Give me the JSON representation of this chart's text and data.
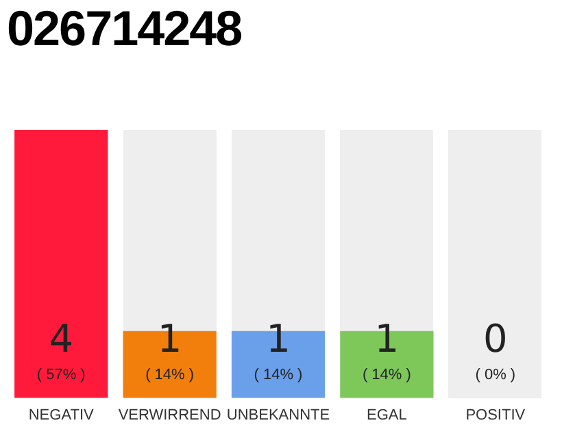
{
  "chart_data": {
    "type": "bar",
    "title": "026714248",
    "categories": [
      "NEGATIV",
      "VERWIRREND",
      "UNBEKANNTE",
      "EGAL",
      "POSITIV"
    ],
    "values": [
      4,
      1,
      1,
      1,
      0
    ],
    "colors": [
      "#ff1a3c",
      "#f27f0c",
      "#6a9fea",
      "#7ec85a",
      "#eeeeee"
    ],
    "value_labels": [
      "4 ( 57% )",
      "1 ( 14% )",
      "1 ( 14% )",
      "1 ( 14% )",
      "0 ( 0% )"
    ],
    "grid": false,
    "legend": false
  }
}
